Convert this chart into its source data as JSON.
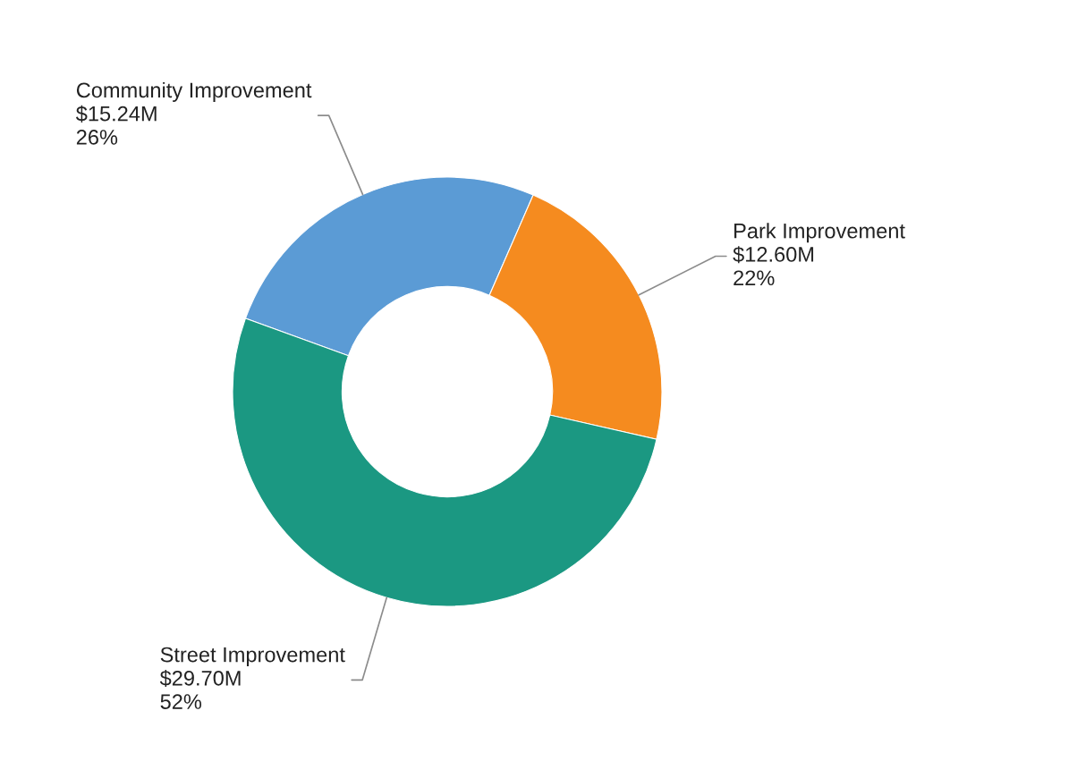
{
  "chart_data": {
    "type": "donut",
    "categories": [
      "Community Improvement",
      "Park Improvement",
      "Street Improvement"
    ],
    "values": [
      26,
      22,
      52
    ],
    "colors": [
      "#5b9bd5",
      "#f58b1f",
      "#1b9882"
    ],
    "value_labels": [
      "$15.24M\n26%",
      "$12.60M\n22%",
      "$29.70M\n52%"
    ]
  }
}
